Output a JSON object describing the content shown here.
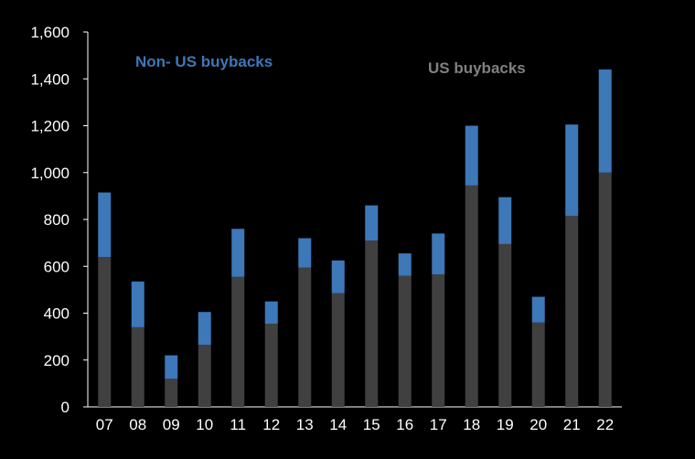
{
  "chart_data": {
    "type": "bar",
    "stacked": true,
    "title": "",
    "xlabel": "",
    "ylabel": "",
    "ylim": [
      0,
      1600
    ],
    "yticks": [
      0,
      200,
      400,
      600,
      800,
      1000,
      1200,
      1400,
      1600
    ],
    "ytick_labels": [
      "0",
      "200",
      "400",
      "600",
      "800",
      "1,000",
      "1,200",
      "1,400",
      "1,600"
    ],
    "grid": false,
    "categories": [
      "07",
      "08",
      "09",
      "10",
      "11",
      "12",
      "13",
      "14",
      "15",
      "16",
      "17",
      "18",
      "19",
      "20",
      "21",
      "22"
    ],
    "series": [
      {
        "name": "US buybacks",
        "color": "#404040",
        "label_color": "#808080",
        "values": [
          640,
          340,
          120,
          265,
          555,
          355,
          595,
          485,
          710,
          560,
          565,
          945,
          695,
          360,
          815,
          1000
        ]
      },
      {
        "name": "Non- US buybacks",
        "color": "#3d78b8",
        "label_color": "#3d78b8",
        "values": [
          275,
          195,
          100,
          140,
          205,
          95,
          125,
          140,
          150,
          95,
          175,
          255,
          200,
          110,
          390,
          440
        ]
      }
    ]
  }
}
